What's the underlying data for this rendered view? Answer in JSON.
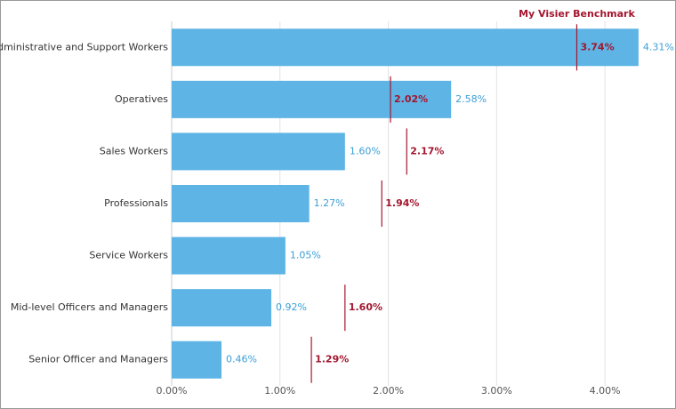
{
  "chart_data": {
    "type": "bar",
    "orientation": "horizontal",
    "categories": [
      "Administrative and Support Workers",
      "Operatives",
      "Sales Workers",
      "Professionals",
      "Service Workers",
      "Mid-level Officers and Managers",
      "Senior Officer and Managers"
    ],
    "values": [
      4.31,
      2.58,
      1.6,
      1.27,
      1.05,
      0.92,
      0.46
    ],
    "value_labels": [
      "4.31%",
      "2.58%",
      "1.60%",
      "1.27%",
      "1.05%",
      "0.92%",
      "0.46%"
    ],
    "color": "#5db4e5",
    "label_color": "#3a9fd9",
    "benchmark": {
      "name": "My Visier Benchmark",
      "values": [
        3.74,
        2.02,
        2.17,
        1.94,
        null,
        1.6,
        1.29
      ],
      "value_labels": [
        "3.74%",
        "2.02%",
        "2.17%",
        "1.94%",
        null,
        "1.60%",
        "1.29%"
      ],
      "color": "#a3162e"
    },
    "xlim": [
      0,
      4.5
    ],
    "xticks": [
      {
        "value": 0,
        "label": "0.00%"
      },
      {
        "value": 1,
        "label": "1.00%"
      },
      {
        "value": 2,
        "label": "2.00%"
      },
      {
        "value": 3,
        "label": "3.00%"
      },
      {
        "value": 4,
        "label": "4.00%"
      }
    ],
    "grid": true
  }
}
